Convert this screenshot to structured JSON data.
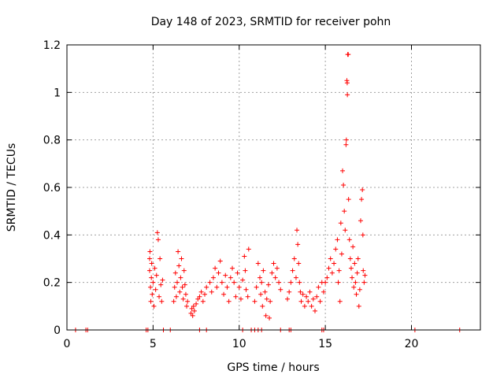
{
  "chart_data": {
    "type": "scatter",
    "title": "Day 148 of 2023, SRMTID for receiver pohn",
    "xlabel": "GPS time / hours",
    "ylabel": "SRMTID / TECUs",
    "xlim": [
      0,
      24
    ],
    "ylim": [
      0,
      1.2
    ],
    "xticks": [
      0,
      5,
      10,
      15,
      20
    ],
    "xtick_labels": [
      "0",
      "5",
      "10",
      "15",
      "20"
    ],
    "yticks": [
      0,
      0.2,
      0.4,
      0.6,
      0.8,
      1.0,
      1.2
    ],
    "ytick_labels": [
      "0",
      "0.2",
      "0.4",
      "0.6",
      "0.8",
      "1",
      "1.2"
    ],
    "grid": true,
    "marker": "+",
    "color": "#ff0000",
    "series": [
      {
        "name": "SRMTID",
        "points": [
          [
            0.5,
            0
          ],
          [
            1.1,
            0
          ],
          [
            1.2,
            0
          ],
          [
            4.6,
            0
          ],
          [
            4.7,
            0
          ],
          [
            5.6,
            0
          ],
          [
            6.0,
            0
          ],
          [
            7.7,
            0
          ],
          [
            8.1,
            0
          ],
          [
            10.2,
            0
          ],
          [
            10.7,
            0
          ],
          [
            10.9,
            0
          ],
          [
            11.1,
            0
          ],
          [
            11.3,
            0
          ],
          [
            12.4,
            0
          ],
          [
            12.9,
            0
          ],
          [
            13.0,
            0
          ],
          [
            14.8,
            0
          ],
          [
            14.9,
            0
          ],
          [
            20.2,
            0
          ],
          [
            22.8,
            0
          ],
          [
            4.8,
            0.3
          ],
          [
            4.8,
            0.25
          ],
          [
            4.82,
            0.33
          ],
          [
            4.85,
            0.18
          ],
          [
            4.87,
            0.12
          ],
          [
            4.9,
            0.22
          ],
          [
            4.92,
            0.28
          ],
          [
            4.95,
            0.15
          ],
          [
            5.0,
            0.2
          ],
          [
            5.05,
            0.1
          ],
          [
            5.1,
            0.26
          ],
          [
            5.15,
            0.17
          ],
          [
            5.2,
            0.23
          ],
          [
            5.25,
            0.41
          ],
          [
            5.3,
            0.38
          ],
          [
            5.35,
            0.14
          ],
          [
            5.4,
            0.3
          ],
          [
            5.45,
            0.19
          ],
          [
            5.5,
            0.12
          ],
          [
            5.55,
            0.21
          ],
          [
            6.2,
            0.12
          ],
          [
            6.25,
            0.18
          ],
          [
            6.3,
            0.24
          ],
          [
            6.35,
            0.14
          ],
          [
            6.4,
            0.2
          ],
          [
            6.45,
            0.33
          ],
          [
            6.5,
            0.27
          ],
          [
            6.55,
            0.16
          ],
          [
            6.6,
            0.22
          ],
          [
            6.65,
            0.3
          ],
          [
            6.7,
            0.18
          ],
          [
            6.75,
            0.13
          ],
          [
            6.8,
            0.25
          ],
          [
            6.85,
            0.19
          ],
          [
            6.9,
            0.15
          ],
          [
            6.95,
            0.1
          ],
          [
            7.0,
            0.12
          ],
          [
            7.2,
            0.07
          ],
          [
            7.25,
            0.09
          ],
          [
            7.3,
            0.06
          ],
          [
            7.35,
            0.1
          ],
          [
            7.4,
            0.08
          ],
          [
            7.5,
            0.11
          ],
          [
            7.6,
            0.13
          ],
          [
            7.7,
            0.14
          ],
          [
            7.8,
            0.16
          ],
          [
            7.9,
            0.12
          ],
          [
            8.0,
            0.15
          ],
          [
            8.1,
            0.18
          ],
          [
            8.3,
            0.2
          ],
          [
            8.4,
            0.16
          ],
          [
            8.5,
            0.22
          ],
          [
            8.6,
            0.26
          ],
          [
            8.7,
            0.18
          ],
          [
            8.8,
            0.24
          ],
          [
            8.9,
            0.29
          ],
          [
            9.0,
            0.2
          ],
          [
            9.1,
            0.15
          ],
          [
            9.2,
            0.23
          ],
          [
            9.3,
            0.18
          ],
          [
            9.4,
            0.12
          ],
          [
            9.5,
            0.22
          ],
          [
            9.6,
            0.26
          ],
          [
            9.7,
            0.2
          ],
          [
            9.8,
            0.14
          ],
          [
            9.9,
            0.24
          ],
          [
            10.0,
            0.18
          ],
          [
            10.1,
            0.13
          ],
          [
            10.2,
            0.21
          ],
          [
            10.3,
            0.31
          ],
          [
            10.35,
            0.25
          ],
          [
            10.4,
            0.17
          ],
          [
            10.5,
            0.14
          ],
          [
            10.55,
            0.34
          ],
          [
            10.9,
            0.12
          ],
          [
            11.0,
            0.18
          ],
          [
            11.1,
            0.28
          ],
          [
            11.2,
            0.22
          ],
          [
            11.25,
            0.15
          ],
          [
            11.3,
            0.2
          ],
          [
            11.35,
            0.1
          ],
          [
            11.4,
            0.25
          ],
          [
            11.5,
            0.16
          ],
          [
            11.55,
            0.06
          ],
          [
            11.6,
            0.13
          ],
          [
            11.7,
            0.19
          ],
          [
            11.75,
            0.05
          ],
          [
            11.8,
            0.12
          ],
          [
            11.9,
            0.24
          ],
          [
            12.0,
            0.28
          ],
          [
            12.1,
            0.22
          ],
          [
            12.2,
            0.26
          ],
          [
            12.3,
            0.2
          ],
          [
            12.4,
            0.17
          ],
          [
            12.8,
            0.13
          ],
          [
            12.9,
            0.16
          ],
          [
            13.0,
            0.2
          ],
          [
            13.1,
            0.25
          ],
          [
            13.2,
            0.3
          ],
          [
            13.3,
            0.22
          ],
          [
            13.35,
            0.42
          ],
          [
            13.4,
            0.36
          ],
          [
            13.45,
            0.28
          ],
          [
            13.5,
            0.2
          ],
          [
            13.55,
            0.16
          ],
          [
            13.6,
            0.12
          ],
          [
            13.7,
            0.15
          ],
          [
            13.8,
            0.1
          ],
          [
            13.9,
            0.14
          ],
          [
            14.0,
            0.12
          ],
          [
            14.1,
            0.16
          ],
          [
            14.2,
            0.1
          ],
          [
            14.3,
            0.13
          ],
          [
            14.4,
            0.08
          ],
          [
            14.5,
            0.14
          ],
          [
            14.6,
            0.18
          ],
          [
            14.7,
            0.12
          ],
          [
            14.8,
            0.2
          ],
          [
            14.9,
            0.16
          ],
          [
            15.0,
            0.2
          ],
          [
            15.1,
            0.22
          ],
          [
            15.2,
            0.26
          ],
          [
            15.3,
            0.3
          ],
          [
            15.4,
            0.24
          ],
          [
            15.5,
            0.28
          ],
          [
            15.6,
            0.34
          ],
          [
            15.7,
            0.38
          ],
          [
            15.75,
            0.2
          ],
          [
            15.8,
            0.25
          ],
          [
            15.85,
            0.12
          ],
          [
            15.9,
            0.45
          ],
          [
            15.95,
            0.32
          ],
          [
            16.0,
            0.67
          ],
          [
            16.05,
            0.61
          ],
          [
            16.1,
            0.5
          ],
          [
            16.15,
            0.42
          ],
          [
            16.2,
            0.78
          ],
          [
            16.22,
            0.8
          ],
          [
            16.25,
            1.05
          ],
          [
            16.27,
            1.04
          ],
          [
            16.3,
            1.16
          ],
          [
            16.33,
            1.16
          ],
          [
            16.28,
            0.99
          ],
          [
            16.35,
            0.55
          ],
          [
            16.4,
            0.38
          ],
          [
            16.45,
            0.3
          ],
          [
            16.5,
            0.26
          ],
          [
            16.55,
            0.22
          ],
          [
            16.6,
            0.35
          ],
          [
            16.65,
            0.18
          ],
          [
            16.7,
            0.28
          ],
          [
            16.75,
            0.2
          ],
          [
            16.8,
            0.15
          ],
          [
            16.85,
            0.24
          ],
          [
            16.9,
            0.3
          ],
          [
            16.95,
            0.1
          ],
          [
            17.0,
            0.17
          ],
          [
            17.05,
            0.46
          ],
          [
            17.1,
            0.55
          ],
          [
            17.15,
            0.59
          ],
          [
            17.18,
            0.4
          ],
          [
            17.2,
            0.25
          ],
          [
            17.25,
            0.2
          ],
          [
            17.3,
            0.23
          ]
        ]
      }
    ]
  }
}
